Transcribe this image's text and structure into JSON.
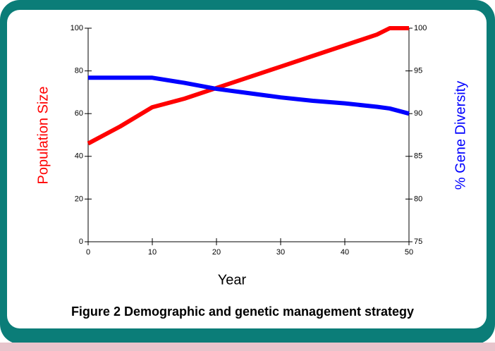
{
  "chart_data": {
    "type": "line",
    "caption": "Figure 2 Demographic and genetic management strategy",
    "xlabel": "Year",
    "ylabel": "Population Size",
    "y2label": "% Gene Diversity",
    "ylabel_color": "#ff0000",
    "y2label_color": "#0000ff",
    "x": [
      0,
      5,
      10,
      15,
      20,
      25,
      30,
      35,
      40,
      45,
      47,
      50
    ],
    "series": [
      {
        "name": "Population Size",
        "color": "#ff0000",
        "values": [
          46,
          54,
          63,
          67,
          72,
          77,
          82,
          87,
          92,
          97,
          100,
          100
        ]
      },
      {
        "name": "% Gene Diversity",
        "color": "#0000ff",
        "axis": "y2",
        "values": [
          94.2,
          94.2,
          94.2,
          93.6,
          92.9,
          92.4,
          91.9,
          91.5,
          91.2,
          90.8,
          90.6,
          90.0
        ]
      }
    ],
    "xlim": [
      0,
      50
    ],
    "xticks": [
      0,
      10,
      20,
      30,
      40,
      50
    ],
    "ylim": [
      0,
      100
    ],
    "yticks": [
      0,
      20,
      40,
      60,
      80,
      100
    ],
    "y2lim": [
      75,
      100
    ],
    "y2ticks": [
      75,
      80,
      85,
      90,
      95,
      100
    ],
    "grid": false
  }
}
